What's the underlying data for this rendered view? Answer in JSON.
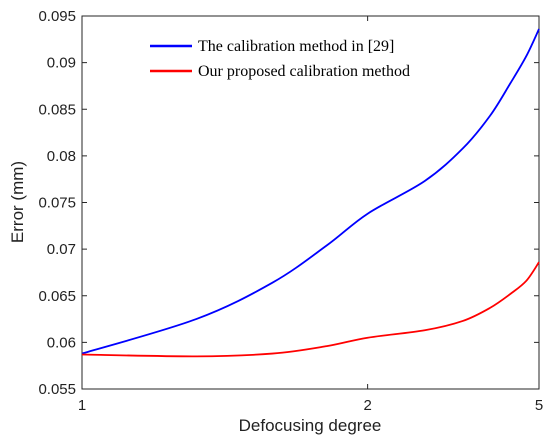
{
  "chart_data": {
    "type": "line",
    "xlabel": "Defocusing degree",
    "ylabel": "Error (mm)",
    "x_ticks": [
      "1",
      "2",
      "5"
    ],
    "y_ticks": [
      "0.055",
      "0.06",
      "0.065",
      "0.07",
      "0.075",
      "0.08",
      "0.085",
      "0.09",
      "0.095"
    ],
    "xlim": [
      1,
      5
    ],
    "ylim": [
      0.055,
      0.095
    ],
    "grid": false,
    "legend_position": "top-center",
    "series": [
      {
        "name": "The calibration method in [29]",
        "color": "#0000ff",
        "x": [
          1,
          1.25,
          1.5,
          1.75,
          2,
          2.5,
          3,
          3.5,
          4,
          4.5,
          5
        ],
        "y": [
          0.0588,
          0.0625,
          0.0664,
          0.0704,
          0.0738,
          0.0773,
          0.0808,
          0.0843,
          0.0878,
          0.0907,
          0.0936
        ]
      },
      {
        "name": "Our proposed calibration method",
        "color": "#ff0000",
        "x": [
          1,
          1.25,
          1.5,
          1.75,
          2,
          2.5,
          3,
          3.5,
          4,
          4.5,
          5
        ],
        "y": [
          0.0587,
          0.0585,
          0.0588,
          0.0596,
          0.0605,
          0.0613,
          0.0623,
          0.0637,
          0.0652,
          0.0666,
          0.0686
        ]
      }
    ]
  }
}
